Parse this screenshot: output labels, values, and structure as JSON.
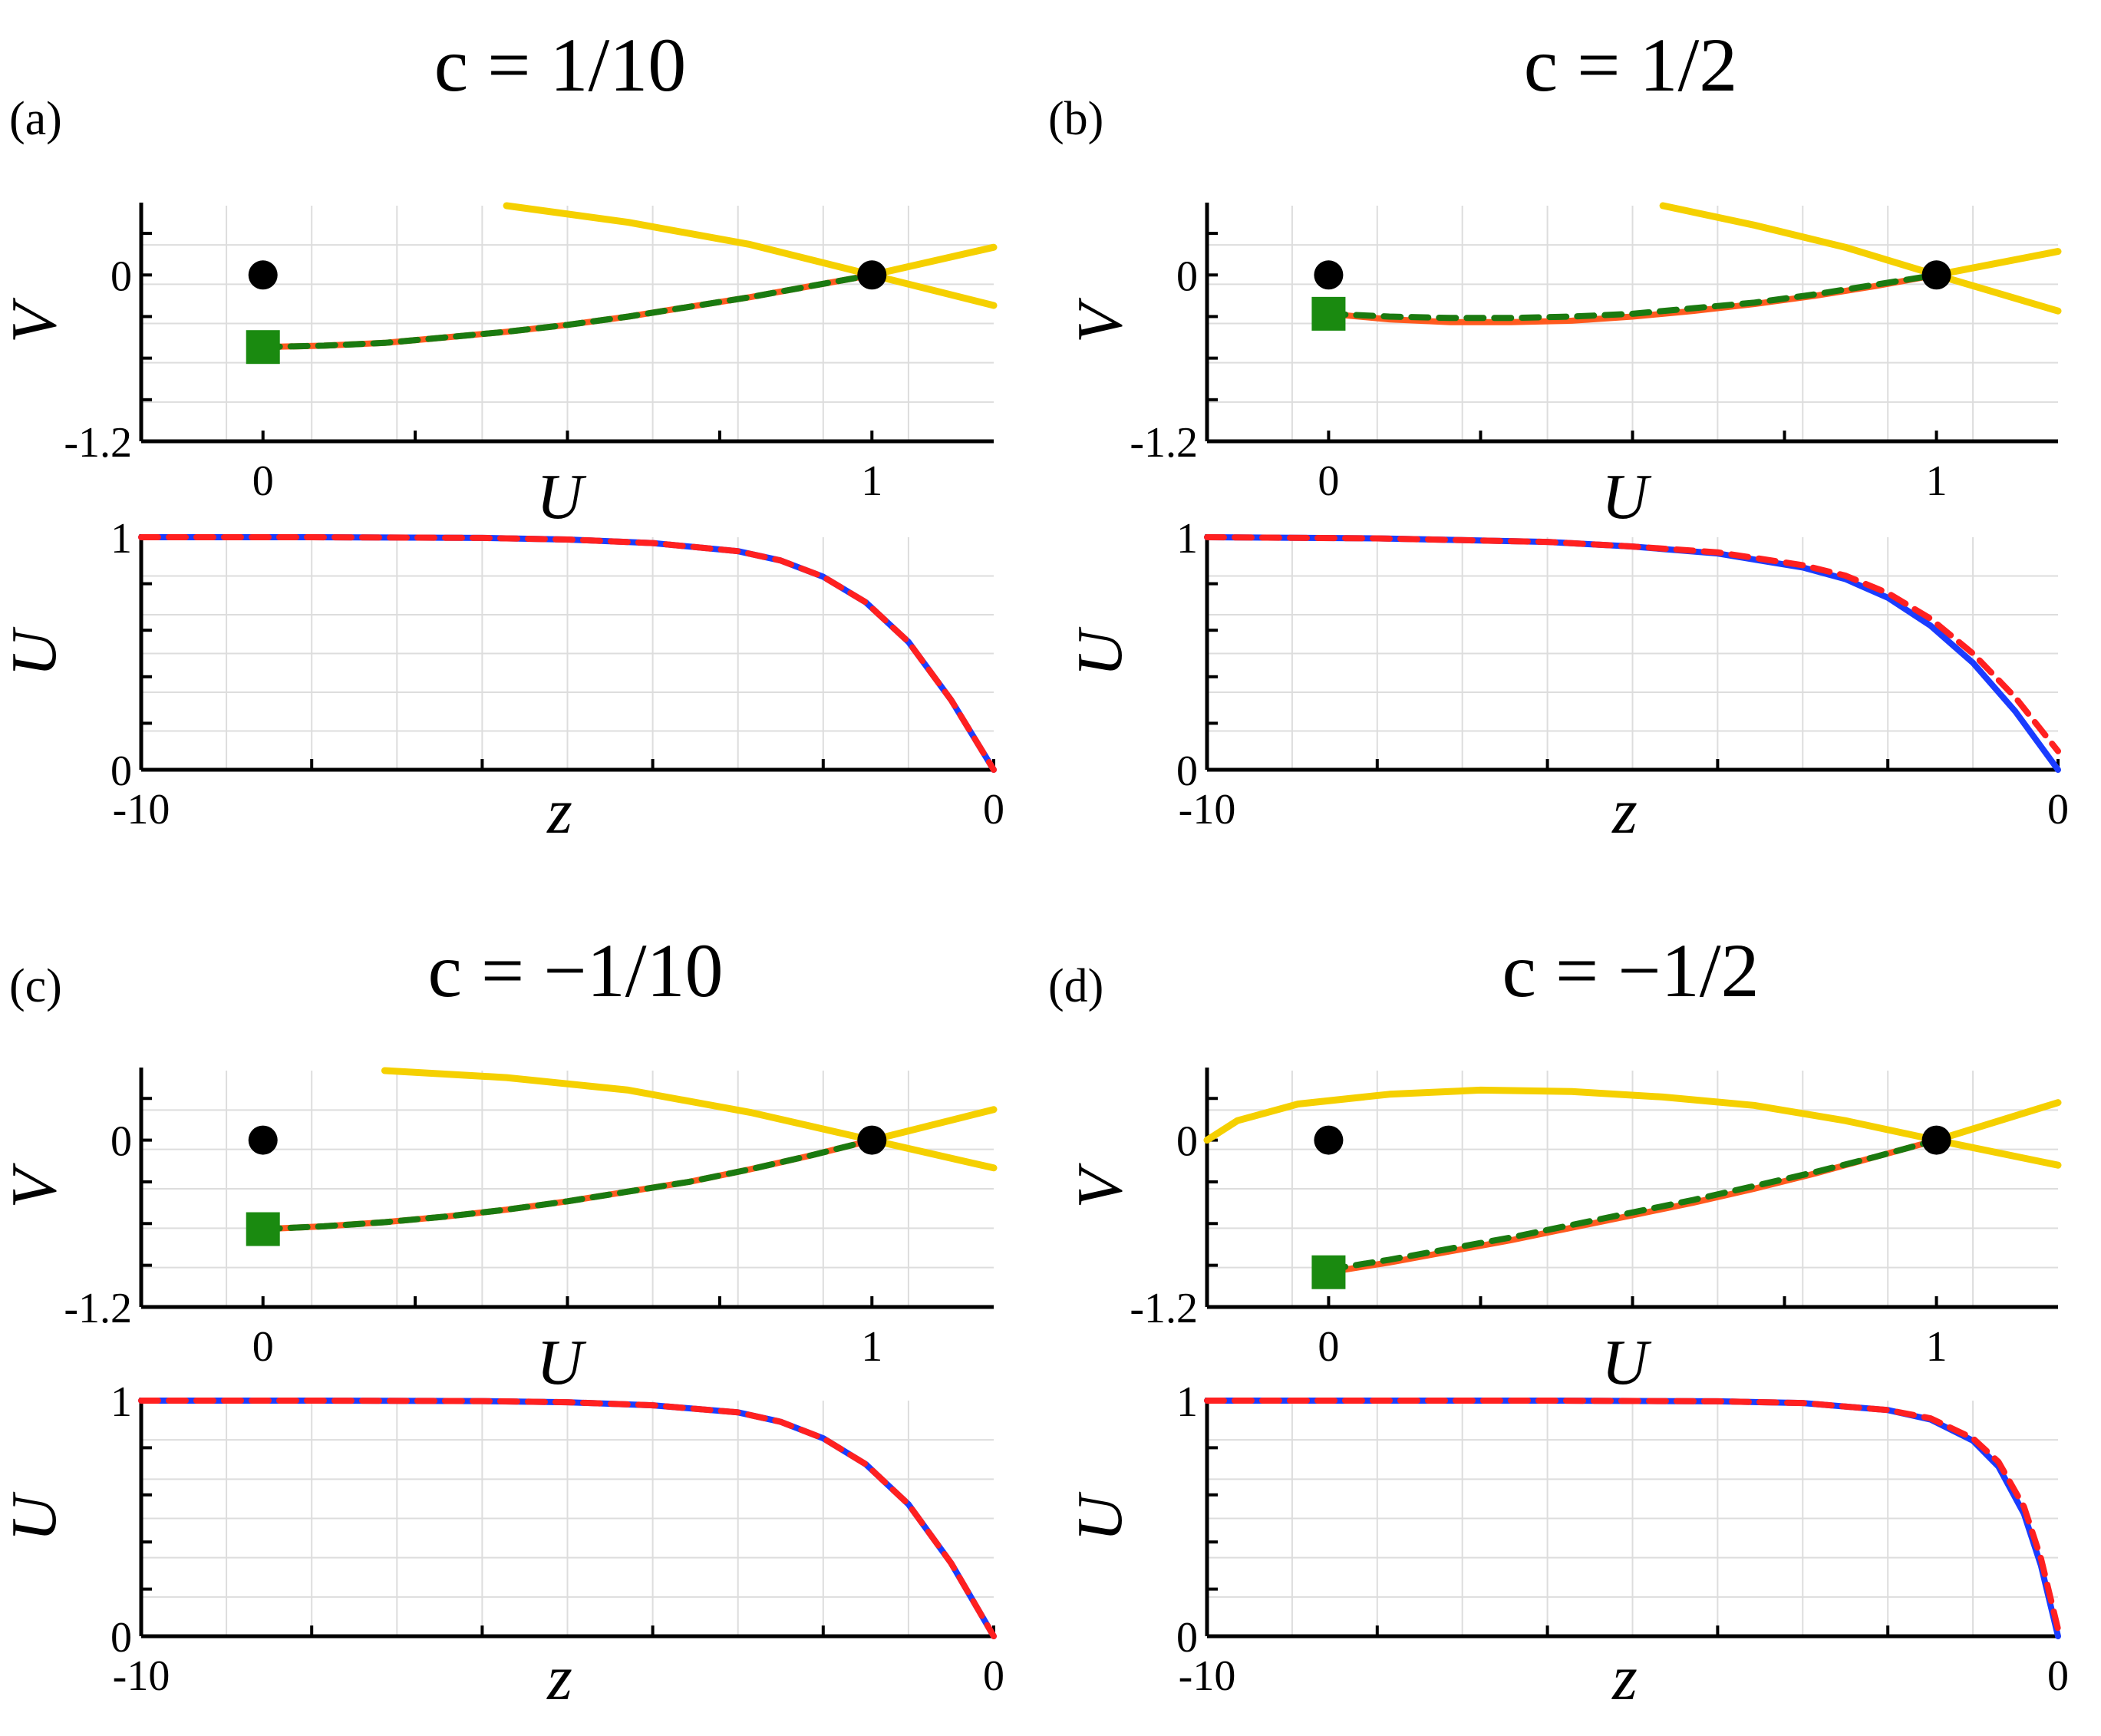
{
  "figure": {
    "panels": [
      {
        "label": "(a)",
        "title_text": "c = 1/10"
      },
      {
        "label": "(b)",
        "title_text": "c = 1/2"
      },
      {
        "label": "(c)",
        "title_text": "c = −1/10"
      },
      {
        "label": "(d)",
        "title_text": "c = −1/2"
      }
    ]
  },
  "chart_data": [
    {
      "panel": "(a)",
      "subplot": "phase-plane",
      "type": "line",
      "xlabel": "U",
      "ylabel": "V",
      "xlim": [
        -0.2,
        1.2
      ],
      "ylim": [
        -1.2,
        0.5
      ],
      "xticklabels": [
        "0",
        "1"
      ],
      "yticklabels": [
        "-1.2",
        "0"
      ],
      "grid": true,
      "series": [
        {
          "color": "#f5d000",
          "style": "solid",
          "x": [
            0.4,
            0.6,
            0.8,
            1.0,
            1.2
          ],
          "y": [
            0.5,
            0.38,
            0.22,
            0.0,
            -0.22
          ]
        },
        {
          "color": "#f5d000",
          "style": "solid",
          "x": [
            1.0,
            1.2
          ],
          "y": [
            0.0,
            0.2
          ]
        },
        {
          "color": "#ff5a1f",
          "style": "solid",
          "x": [
            0.0,
            0.1,
            0.2,
            0.3,
            0.4,
            0.5,
            0.6,
            0.7,
            0.8,
            0.9,
            1.0
          ],
          "y": [
            -0.52,
            -0.51,
            -0.49,
            -0.45,
            -0.41,
            -0.36,
            -0.3,
            -0.23,
            -0.16,
            -0.08,
            0.0
          ]
        },
        {
          "color": "#1a7a10",
          "style": "dashed",
          "x": [
            0.0,
            0.1,
            0.2,
            0.3,
            0.4,
            0.5,
            0.6,
            0.7,
            0.8,
            0.9,
            1.0
          ],
          "y": [
            -0.52,
            -0.51,
            -0.49,
            -0.45,
            -0.41,
            -0.36,
            -0.3,
            -0.23,
            -0.16,
            -0.08,
            0.0
          ]
        }
      ],
      "markers": [
        {
          "shape": "circle",
          "color": "#000000",
          "x": 0.0,
          "y": 0.0
        },
        {
          "shape": "circle",
          "color": "#000000",
          "x": 1.0,
          "y": 0.0
        },
        {
          "shape": "square",
          "color": "#1a8a10",
          "x": 0.0,
          "y": -0.52
        }
      ]
    },
    {
      "panel": "(a)",
      "subplot": "profile",
      "type": "line",
      "xlabel": "z",
      "ylabel": "U",
      "xlim": [
        -10,
        0
      ],
      "ylim": [
        0,
        1
      ],
      "xticklabels": [
        "-10",
        "0"
      ],
      "yticklabels": [
        "0",
        "1"
      ],
      "grid": true,
      "series": [
        {
          "color": "#1a3cff",
          "style": "solid",
          "x": [
            -10,
            -8,
            -6,
            -5,
            -4,
            -3,
            -2.5,
            -2,
            -1.5,
            -1,
            -0.5,
            0
          ],
          "y": [
            1.0,
            1.0,
            0.997,
            0.99,
            0.975,
            0.94,
            0.9,
            0.83,
            0.72,
            0.55,
            0.3,
            0.0
          ]
        },
        {
          "color": "#ff2020",
          "style": "dashed",
          "x": [
            -10,
            -8,
            -6,
            -5,
            -4,
            -3,
            -2.5,
            -2,
            -1.5,
            -1,
            -0.5,
            0
          ],
          "y": [
            1.0,
            1.0,
            0.997,
            0.99,
            0.975,
            0.94,
            0.9,
            0.83,
            0.72,
            0.55,
            0.3,
            0.0
          ]
        }
      ]
    },
    {
      "panel": "(b)",
      "subplot": "phase-plane",
      "type": "line",
      "xlabel": "U",
      "ylabel": "V",
      "xlim": [
        -0.2,
        1.2
      ],
      "ylim": [
        -1.2,
        0.5
      ],
      "xticklabels": [
        "0",
        "1"
      ],
      "yticklabels": [
        "-1.2",
        "0"
      ],
      "grid": true,
      "series": [
        {
          "color": "#f5d000",
          "style": "solid",
          "x": [
            0.55,
            0.7,
            0.85,
            1.0,
            1.2
          ],
          "y": [
            0.5,
            0.36,
            0.2,
            0.0,
            -0.26
          ]
        },
        {
          "color": "#f5d000",
          "style": "solid",
          "x": [
            1.0,
            1.2
          ],
          "y": [
            0.0,
            0.17
          ]
        },
        {
          "color": "#ff5a1f",
          "style": "solid",
          "x": [
            0.0,
            0.1,
            0.2,
            0.3,
            0.4,
            0.5,
            0.6,
            0.7,
            0.8,
            0.9,
            1.0
          ],
          "y": [
            -0.28,
            -0.32,
            -0.34,
            -0.34,
            -0.33,
            -0.3,
            -0.26,
            -0.21,
            -0.15,
            -0.08,
            0.0
          ]
        },
        {
          "color": "#1a7a10",
          "style": "dashed",
          "x": [
            0.0,
            0.1,
            0.2,
            0.3,
            0.4,
            0.5,
            0.6,
            0.7,
            0.8,
            0.9,
            1.0
          ],
          "y": [
            -0.28,
            -0.3,
            -0.31,
            -0.31,
            -0.3,
            -0.28,
            -0.24,
            -0.2,
            -0.14,
            -0.07,
            0.0
          ]
        }
      ],
      "markers": [
        {
          "shape": "circle",
          "color": "#000000",
          "x": 0.0,
          "y": 0.0
        },
        {
          "shape": "circle",
          "color": "#000000",
          "x": 1.0,
          "y": 0.0
        },
        {
          "shape": "square",
          "color": "#1a8a10",
          "x": 0.0,
          "y": -0.28
        }
      ]
    },
    {
      "panel": "(b)",
      "subplot": "profile",
      "type": "line",
      "xlabel": "z",
      "ylabel": "U",
      "xlim": [
        -10,
        0
      ],
      "ylim": [
        0,
        1
      ],
      "xticklabels": [
        "-10",
        "0"
      ],
      "yticklabels": [
        "0",
        "1"
      ],
      "grid": true,
      "series": [
        {
          "color": "#1a3cff",
          "style": "solid",
          "x": [
            -10,
            -8,
            -6,
            -5,
            -4,
            -3,
            -2.5,
            -2,
            -1.5,
            -1,
            -0.5,
            0
          ],
          "y": [
            1.0,
            0.995,
            0.98,
            0.96,
            0.93,
            0.87,
            0.82,
            0.74,
            0.62,
            0.46,
            0.25,
            0.0
          ]
        },
        {
          "color": "#ff2020",
          "style": "dashed",
          "x": [
            -10,
            -8,
            -6,
            -5,
            -4,
            -3,
            -2.5,
            -2,
            -1.5,
            -1,
            -0.5,
            0
          ],
          "y": [
            1.0,
            0.995,
            0.98,
            0.96,
            0.935,
            0.88,
            0.835,
            0.76,
            0.65,
            0.5,
            0.31,
            0.08
          ]
        }
      ]
    },
    {
      "panel": "(c)",
      "subplot": "phase-plane",
      "type": "line",
      "xlabel": "U",
      "ylabel": "V",
      "xlim": [
        -0.2,
        1.2
      ],
      "ylim": [
        -1.2,
        0.5
      ],
      "xticklabels": [
        "0",
        "1"
      ],
      "yticklabels": [
        "-1.2",
        "0"
      ],
      "grid": true,
      "series": [
        {
          "color": "#f5d000",
          "style": "solid",
          "x": [
            0.2,
            0.4,
            0.6,
            0.8,
            1.0,
            1.2
          ],
          "y": [
            0.5,
            0.45,
            0.36,
            0.2,
            0.0,
            -0.2
          ]
        },
        {
          "color": "#f5d000",
          "style": "solid",
          "x": [
            1.0,
            1.2
          ],
          "y": [
            0.0,
            0.22
          ]
        },
        {
          "color": "#ff5a1f",
          "style": "solid",
          "x": [
            0.0,
            0.1,
            0.2,
            0.3,
            0.4,
            0.5,
            0.6,
            0.7,
            0.8,
            0.9,
            1.0
          ],
          "y": [
            -0.64,
            -0.62,
            -0.59,
            -0.55,
            -0.5,
            -0.44,
            -0.37,
            -0.3,
            -0.21,
            -0.11,
            0.0
          ]
        },
        {
          "color": "#1a7a10",
          "style": "dashed",
          "x": [
            0.0,
            0.1,
            0.2,
            0.3,
            0.4,
            0.5,
            0.6,
            0.7,
            0.8,
            0.9,
            1.0
          ],
          "y": [
            -0.64,
            -0.62,
            -0.59,
            -0.55,
            -0.5,
            -0.44,
            -0.37,
            -0.3,
            -0.21,
            -0.11,
            0.0
          ]
        }
      ],
      "markers": [
        {
          "shape": "circle",
          "color": "#000000",
          "x": 0.0,
          "y": 0.0
        },
        {
          "shape": "circle",
          "color": "#000000",
          "x": 1.0,
          "y": 0.0
        },
        {
          "shape": "square",
          "color": "#1a8a10",
          "x": 0.0,
          "y": -0.64
        }
      ]
    },
    {
      "panel": "(c)",
      "subplot": "profile",
      "type": "line",
      "xlabel": "z",
      "ylabel": "U",
      "xlim": [
        -10,
        0
      ],
      "ylim": [
        0,
        1
      ],
      "xticklabels": [
        "-10",
        "0"
      ],
      "yticklabels": [
        "0",
        "1"
      ],
      "grid": true,
      "series": [
        {
          "color": "#1a3cff",
          "style": "solid",
          "x": [
            -10,
            -8,
            -6,
            -5,
            -4,
            -3,
            -2.5,
            -2,
            -1.5,
            -1,
            -0.5,
            0
          ],
          "y": [
            1.0,
            1.0,
            0.998,
            0.993,
            0.98,
            0.95,
            0.91,
            0.84,
            0.73,
            0.56,
            0.31,
            0.0
          ]
        },
        {
          "color": "#ff2020",
          "style": "dashed",
          "x": [
            -10,
            -8,
            -6,
            -5,
            -4,
            -3,
            -2.5,
            -2,
            -1.5,
            -1,
            -0.5,
            0
          ],
          "y": [
            1.0,
            1.0,
            0.998,
            0.993,
            0.98,
            0.95,
            0.91,
            0.84,
            0.73,
            0.56,
            0.31,
            0.0
          ]
        }
      ]
    },
    {
      "panel": "(d)",
      "subplot": "phase-plane",
      "type": "line",
      "xlabel": "U",
      "ylabel": "V",
      "xlim": [
        -0.2,
        1.2
      ],
      "ylim": [
        -1.2,
        0.5
      ],
      "xticklabels": [
        "0",
        "1"
      ],
      "yticklabels": [
        "-1.2",
        "0"
      ],
      "grid": true,
      "series": [
        {
          "color": "#f5d000",
          "style": "solid",
          "x": [
            -0.2,
            -0.15,
            -0.05,
            0.1,
            0.25,
            0.4,
            0.55,
            0.7,
            0.85,
            1.0,
            1.2
          ],
          "y": [
            0.0,
            0.14,
            0.26,
            0.33,
            0.36,
            0.35,
            0.31,
            0.25,
            0.14,
            0.0,
            -0.18
          ]
        },
        {
          "color": "#f5d000",
          "style": "solid",
          "x": [
            1.0,
            1.2
          ],
          "y": [
            0.0,
            0.27
          ]
        },
        {
          "color": "#ff5a1f",
          "style": "solid",
          "x": [
            0.0,
            0.1,
            0.2,
            0.3,
            0.4,
            0.5,
            0.6,
            0.7,
            0.8,
            0.9,
            1.0
          ],
          "y": [
            -0.95,
            -0.88,
            -0.8,
            -0.72,
            -0.63,
            -0.54,
            -0.45,
            -0.35,
            -0.24,
            -0.12,
            0.0
          ]
        },
        {
          "color": "#1a7a10",
          "style": "dashed",
          "x": [
            0.0,
            0.1,
            0.2,
            0.3,
            0.4,
            0.5,
            0.6,
            0.7,
            0.8,
            0.9,
            1.0
          ],
          "y": [
            -0.93,
            -0.86,
            -0.78,
            -0.7,
            -0.61,
            -0.52,
            -0.43,
            -0.33,
            -0.23,
            -0.12,
            0.0
          ]
        }
      ],
      "markers": [
        {
          "shape": "circle",
          "color": "#000000",
          "x": 0.0,
          "y": 0.0
        },
        {
          "shape": "circle",
          "color": "#000000",
          "x": 1.0,
          "y": 0.0
        },
        {
          "shape": "square",
          "color": "#1a8a10",
          "x": 0.0,
          "y": -0.95
        }
      ]
    },
    {
      "panel": "(d)",
      "subplot": "profile",
      "type": "line",
      "xlabel": "z",
      "ylabel": "U",
      "xlim": [
        -10,
        0
      ],
      "ylim": [
        0,
        1
      ],
      "xticklabels": [
        "-10",
        "0"
      ],
      "yticklabels": [
        "0",
        "1"
      ],
      "grid": true,
      "series": [
        {
          "color": "#1a3cff",
          "style": "solid",
          "x": [
            -10,
            -8,
            -6,
            -4,
            -3,
            -2,
            -1.5,
            -1,
            -0.7,
            -0.4,
            -0.2,
            0
          ],
          "y": [
            1.0,
            1.0,
            1.0,
            0.997,
            0.99,
            0.96,
            0.92,
            0.83,
            0.72,
            0.52,
            0.3,
            0.0
          ]
        },
        {
          "color": "#ff2020",
          "style": "dashed",
          "x": [
            -10,
            -8,
            -6,
            -4,
            -3,
            -2,
            -1.5,
            -1,
            -0.7,
            -0.4,
            -0.2,
            0
          ],
          "y": [
            1.0,
            1.0,
            1.0,
            0.997,
            0.99,
            0.96,
            0.925,
            0.84,
            0.74,
            0.55,
            0.33,
            0.03
          ]
        }
      ]
    }
  ]
}
